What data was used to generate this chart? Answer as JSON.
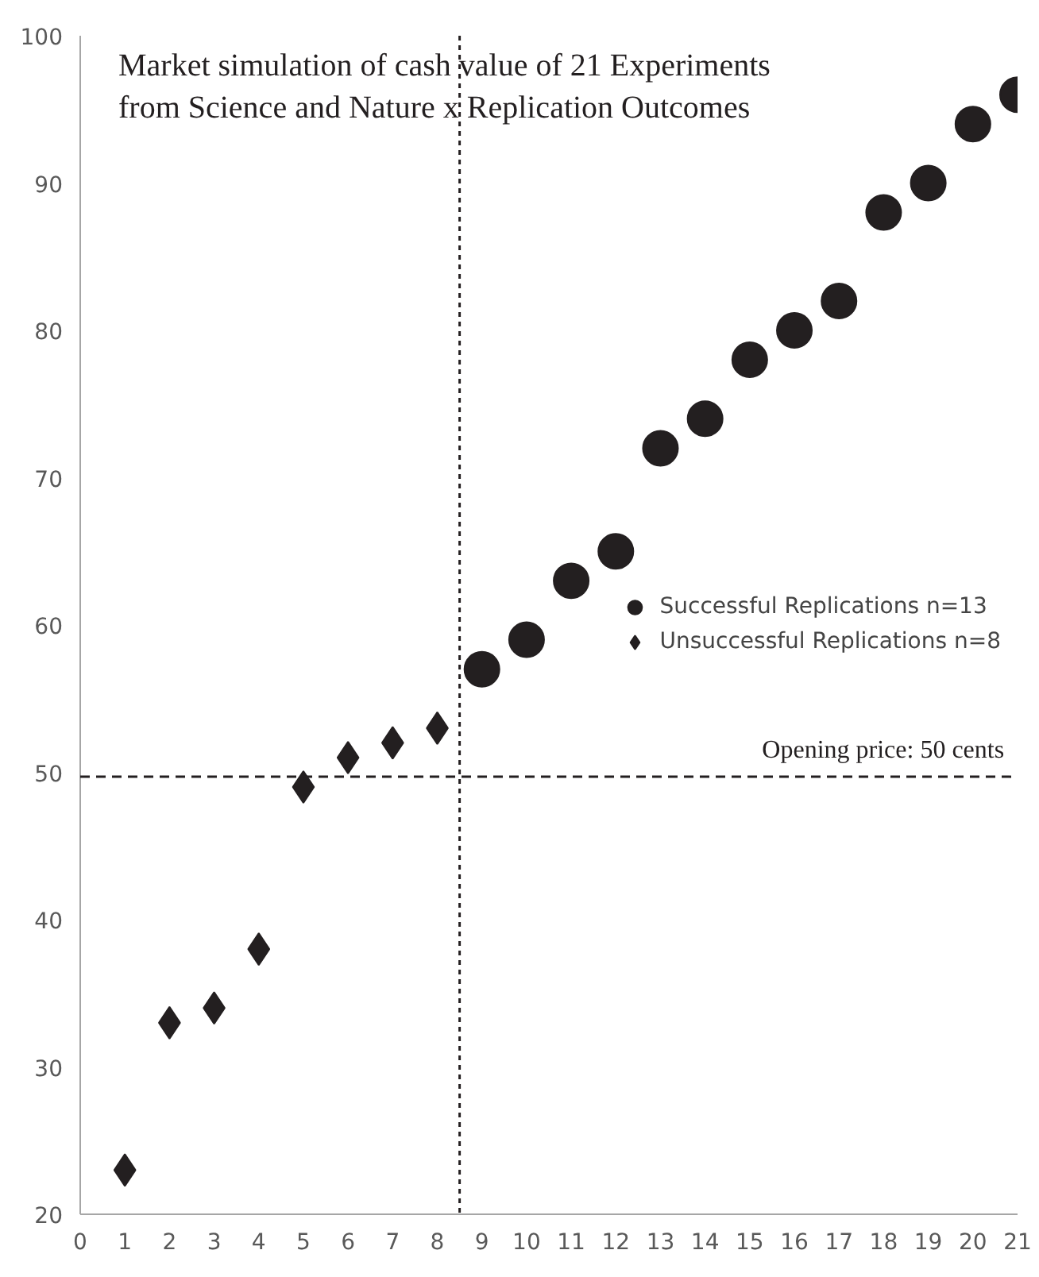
{
  "chart_data": {
    "type": "scatter",
    "title": "Market simulation of cash value of 21 Experiments\nfrom Science and Nature x Replication Outcomes",
    "series": [
      {
        "name": "Successful Replications n=13",
        "color": "#231f20",
        "marker": "circle",
        "x": [
          9,
          10,
          11,
          12,
          13,
          14,
          15,
          16,
          17,
          18,
          19,
          20,
          21
        ],
        "values": [
          57,
          59,
          63,
          65,
          72,
          74,
          78,
          80,
          82,
          88,
          90,
          94,
          96
        ]
      },
      {
        "name": "Unsuccessful Replications n=8",
        "color": "#231f20",
        "marker": "diamond",
        "x": [
          1,
          2,
          3,
          4,
          5,
          6,
          7,
          8
        ],
        "values": [
          23,
          33,
          34,
          38,
          49,
          51,
          52,
          53
        ]
      }
    ],
    "xlim": [
      0,
      21
    ],
    "ylim": [
      20,
      100
    ],
    "xticks": [
      0,
      1,
      2,
      3,
      4,
      5,
      6,
      7,
      8,
      9,
      10,
      11,
      12,
      13,
      14,
      15,
      16,
      17,
      18,
      19,
      20,
      21
    ],
    "yticks": [
      20,
      30,
      40,
      50,
      60,
      70,
      80,
      90,
      100
    ],
    "ref_lines": [
      {
        "axis": "y",
        "value": 49.7,
        "label": "Opening price: 50 cents",
        "line_style": "dashed"
      },
      {
        "axis": "x",
        "value": 8.5,
        "label": null,
        "line_style": "dotted"
      }
    ],
    "grid": false,
    "legend": "right"
  }
}
